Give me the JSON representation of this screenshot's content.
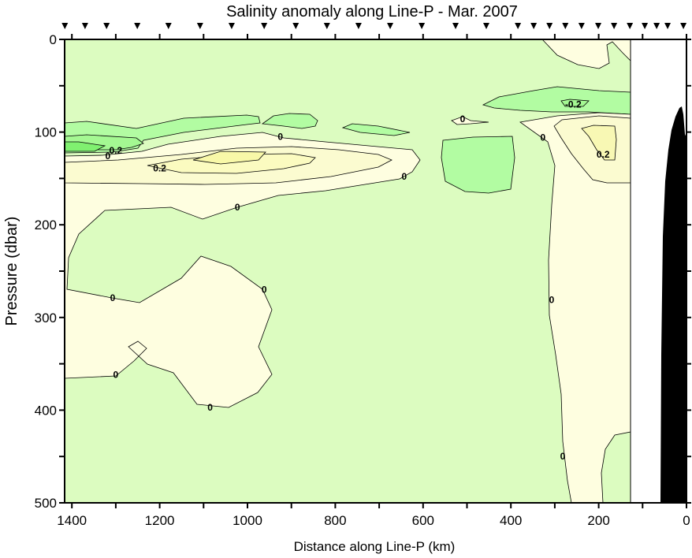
{
  "chart_data": {
    "type": "heatmap",
    "subtype": "filled-contour section",
    "title": "Salinity anomaly along Line-P - Mar. 2007",
    "xlabel": "Distance along Line-P (km)",
    "ylabel": "Pressure (dbar)",
    "xlim": [
      1416,
      0
    ],
    "ylim": [
      0,
      500
    ],
    "y_inverted": true,
    "xticks": [
      1400,
      1200,
      1000,
      800,
      600,
      400,
      200,
      0
    ],
    "yticks": [
      0,
      100,
      200,
      300,
      400,
      500
    ],
    "station_km": [
      1416,
      1370,
      1321,
      1251,
      1180,
      1108,
      1036,
      962,
      890,
      819,
      747,
      675,
      603,
      526,
      456,
      384,
      348,
      312,
      276,
      239,
      201,
      165,
      129,
      95,
      68,
      43,
      7
    ],
    "contour_levels": [
      -0.3,
      -0.2,
      -0.1,
      0,
      0.1,
      0.2,
      0.3
    ],
    "level_colors": {
      "-0.3": "#80f070",
      "-0.2": "#a4f892",
      "-0.1": "#b2fca2",
      "0": "#dcfcc0",
      "0.1": "#fefee0",
      "0.2": "#fbfbc6",
      "0.3": "#f8f8a8"
    },
    "contour_labels": [
      {
        "text": "0.2",
        "km": 1300,
        "dbar": 120
      },
      {
        "text": "0",
        "km": 1318,
        "dbar": 126
      },
      {
        "text": "0.2",
        "km": 1200,
        "dbar": 139
      },
      {
        "text": "0",
        "km": 925,
        "dbar": 105
      },
      {
        "text": "0",
        "km": 643,
        "dbar": 148
      },
      {
        "text": "0",
        "km": 1023,
        "dbar": 181
      },
      {
        "text": "0",
        "km": 1307,
        "dbar": 279
      },
      {
        "text": "0",
        "km": 962,
        "dbar": 270
      },
      {
        "text": "0",
        "km": 1300,
        "dbar": 362
      },
      {
        "text": "0",
        "km": 1085,
        "dbar": 397
      },
      {
        "text": "0",
        "km": 510,
        "dbar": 86
      },
      {
        "text": "-0.2",
        "km": 258,
        "dbar": 70
      },
      {
        "text": "0",
        "km": 327,
        "dbar": 106
      },
      {
        "text": "0.2",
        "km": 190,
        "dbar": 124
      },
      {
        "text": "0",
        "km": 307,
        "dbar": 281
      },
      {
        "text": "0",
        "km": 282,
        "dbar": 450
      }
    ],
    "no_data_region_km": [
      129,
      0
    ],
    "bathymetry_color": "#000000"
  }
}
